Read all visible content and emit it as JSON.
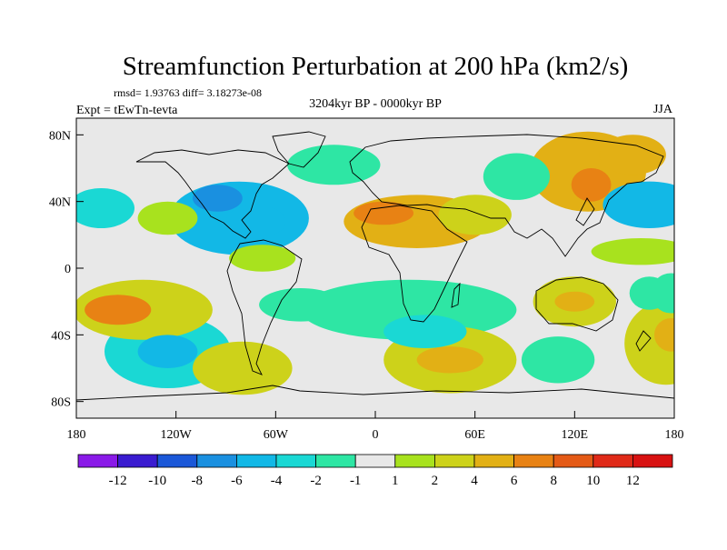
{
  "chart_data": {
    "type": "heatmap",
    "title": "Streamfunction Perturbation at 200 hPa (km2/s)",
    "stats": "rmsd= 1.93763 diff= 3.18273e-08",
    "experiment": "Expt = tEwTn-tevta",
    "period": "3204kyr BP - 0000kyr BP",
    "season": "JJA",
    "x_range": [
      -180,
      180
    ],
    "y_range": [
      -90,
      90
    ],
    "x_ticks": [
      {
        "value": -180,
        "label": "180"
      },
      {
        "value": -120,
        "label": "120W"
      },
      {
        "value": -60,
        "label": "60W"
      },
      {
        "value": 0,
        "label": "0"
      },
      {
        "value": 60,
        "label": "60E"
      },
      {
        "value": 120,
        "label": "120E"
      },
      {
        "value": 180,
        "label": "180"
      }
    ],
    "y_ticks": [
      {
        "value": 80,
        "label": "80N"
      },
      {
        "value": 40,
        "label": "40N"
      },
      {
        "value": 0,
        "label": "0"
      },
      {
        "value": -40,
        "label": "40S"
      },
      {
        "value": -80,
        "label": "80S"
      }
    ],
    "levels": [
      -12,
      -10,
      -8,
      -6,
      -4,
      -2,
      -1,
      1,
      2,
      4,
      6,
      8,
      10,
      12
    ],
    "level_labels": [
      "-12",
      "-10",
      "-8",
      "-6",
      "-4",
      "-2",
      "-1",
      "1",
      "2",
      "4",
      "6",
      "8",
      "10",
      "12"
    ],
    "colors": [
      "#8a1ae8",
      "#3a1cd0",
      "#1b58d8",
      "#1a90e0",
      "#12b8e6",
      "#1ad8d4",
      "#2ee6a4",
      "#e8e8e8",
      "#a8e21e",
      "#cdd21a",
      "#e2b015",
      "#e88214",
      "#e45a16",
      "#e02a18",
      "#d81212"
    ],
    "blobs": [
      {
        "lon": 165,
        "lat": 38,
        "rx": 28,
        "ry": 14,
        "value": -5
      },
      {
        "lon": -165,
        "lat": 36,
        "rx": 20,
        "ry": 12,
        "value": -4
      },
      {
        "lon": -82,
        "lat": 30,
        "rx": 42,
        "ry": 22,
        "value": -5
      },
      {
        "lon": -95,
        "lat": 42,
        "rx": 15,
        "ry": 8,
        "value": -8
      },
      {
        "lon": -72,
        "lat": 28,
        "rx": 18,
        "ry": 10,
        "value": -6
      },
      {
        "lon": -25,
        "lat": 62,
        "rx": 28,
        "ry": 12,
        "value": -2
      },
      {
        "lon": 165,
        "lat": -15,
        "rx": 12,
        "ry": 10,
        "value": -2
      },
      {
        "lon": 25,
        "lat": 28,
        "rx": 44,
        "ry": 16,
        "value": 4
      },
      {
        "lon": 5,
        "lat": 33,
        "rx": 18,
        "ry": 7,
        "value": 6
      },
      {
        "lon": 60,
        "lat": 32,
        "rx": 22,
        "ry": 12,
        "value": 2
      },
      {
        "lon": 128,
        "lat": 58,
        "rx": 35,
        "ry": 24,
        "value": 4
      },
      {
        "lon": 130,
        "lat": 50,
        "rx": 12,
        "ry": 10,
        "value": 6
      },
      {
        "lon": 155,
        "lat": 68,
        "rx": 20,
        "ry": 12,
        "value": 4
      },
      {
        "lon": 85,
        "lat": 55,
        "rx": 20,
        "ry": 14,
        "value": -2
      },
      {
        "lon": 160,
        "lat": 10,
        "rx": 30,
        "ry": 8,
        "value": 1
      },
      {
        "lon": -125,
        "lat": 30,
        "rx": 18,
        "ry": 10,
        "value": 1
      },
      {
        "lon": -68,
        "lat": 6,
        "rx": 20,
        "ry": 8,
        "value": 1
      },
      {
        "lon": -125,
        "lat": -50,
        "rx": 38,
        "ry": 22,
        "value": -4
      },
      {
        "lon": -125,
        "lat": -50,
        "rx": 18,
        "ry": 10,
        "value": -6
      },
      {
        "lon": -140,
        "lat": -25,
        "rx": 42,
        "ry": 18,
        "value": 2
      },
      {
        "lon": -155,
        "lat": -25,
        "rx": 20,
        "ry": 9,
        "value": 6
      },
      {
        "lon": -80,
        "lat": -60,
        "rx": 30,
        "ry": 16,
        "value": 2
      },
      {
        "lon": 20,
        "lat": -25,
        "rx": 65,
        "ry": 18,
        "value": -2
      },
      {
        "lon": 30,
        "lat": -38,
        "rx": 25,
        "ry": 10,
        "value": -4
      },
      {
        "lon": -45,
        "lat": -22,
        "rx": 25,
        "ry": 10,
        "value": -2
      },
      {
        "lon": 45,
        "lat": -55,
        "rx": 40,
        "ry": 20,
        "value": 2
      },
      {
        "lon": 45,
        "lat": -55,
        "rx": 20,
        "ry": 8,
        "value": 4
      },
      {
        "lon": 120,
        "lat": -20,
        "rx": 25,
        "ry": 15,
        "value": 2
      },
      {
        "lon": 120,
        "lat": -20,
        "rx": 12,
        "ry": 6,
        "value": 4
      },
      {
        "lon": 110,
        "lat": -55,
        "rx": 22,
        "ry": 14,
        "value": -2
      },
      {
        "lon": 175,
        "lat": -45,
        "rx": 25,
        "ry": 25,
        "value": 2
      },
      {
        "lon": 178,
        "lat": -40,
        "rx": 10,
        "ry": 10,
        "value": 4
      },
      {
        "lon": 178,
        "lat": -15,
        "rx": 12,
        "ry": 12,
        "value": -2
      }
    ]
  }
}
